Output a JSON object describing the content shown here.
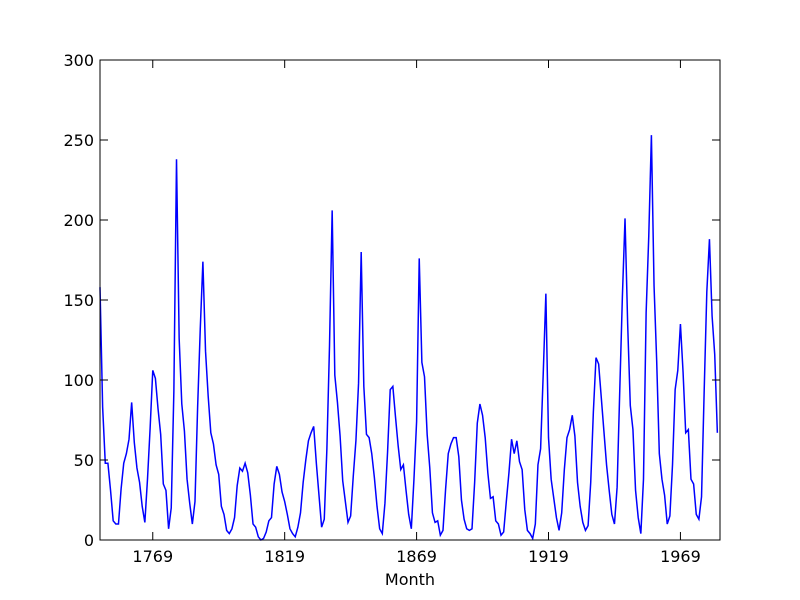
{
  "chart_data": {
    "type": "line",
    "xlabel": "Month",
    "x": [
      1749,
      1750,
      1751,
      1752,
      1753,
      1754,
      1755,
      1756,
      1757,
      1758,
      1759,
      1760,
      1761,
      1762,
      1763,
      1764,
      1765,
      1766,
      1767,
      1768,
      1769,
      1770,
      1771,
      1772,
      1773,
      1774,
      1775,
      1776,
      1777,
      1778,
      1779,
      1780,
      1781,
      1782,
      1783,
      1784,
      1785,
      1786,
      1787,
      1788,
      1789,
      1790,
      1791,
      1792,
      1793,
      1794,
      1795,
      1796,
      1797,
      1798,
      1799,
      1800,
      1801,
      1802,
      1803,
      1804,
      1805,
      1806,
      1807,
      1808,
      1809,
      1810,
      1811,
      1812,
      1813,
      1814,
      1815,
      1816,
      1817,
      1818,
      1819,
      1820,
      1821,
      1822,
      1823,
      1824,
      1825,
      1826,
      1827,
      1828,
      1829,
      1830,
      1831,
      1832,
      1833,
      1834,
      1835,
      1836,
      1837,
      1838,
      1839,
      1840,
      1841,
      1842,
      1843,
      1844,
      1845,
      1846,
      1847,
      1848,
      1849,
      1850,
      1851,
      1852,
      1853,
      1854,
      1855,
      1856,
      1857,
      1858,
      1859,
      1860,
      1861,
      1862,
      1863,
      1864,
      1865,
      1866,
      1867,
      1868,
      1869,
      1870,
      1871,
      1872,
      1873,
      1874,
      1875,
      1876,
      1877,
      1878,
      1879,
      1880,
      1881,
      1882,
      1883,
      1884,
      1885,
      1886,
      1887,
      1888,
      1889,
      1890,
      1891,
      1892,
      1893,
      1894,
      1895,
      1896,
      1897,
      1898,
      1899,
      1900,
      1901,
      1902,
      1903,
      1904,
      1905,
      1906,
      1907,
      1908,
      1909,
      1910,
      1911,
      1912,
      1913,
      1914,
      1915,
      1916,
      1917,
      1918,
      1919,
      1920,
      1921,
      1922,
      1923,
      1924,
      1925,
      1926,
      1927,
      1928,
      1929,
      1930,
      1931,
      1932,
      1933,
      1934,
      1935,
      1936,
      1937,
      1938,
      1939,
      1940,
      1941,
      1942,
      1943,
      1944,
      1945,
      1946,
      1947,
      1948,
      1949,
      1950,
      1951,
      1952,
      1953,
      1954,
      1955,
      1956,
      1957,
      1958,
      1959,
      1960,
      1961,
      1962,
      1963,
      1964,
      1965,
      1966,
      1967,
      1968,
      1969,
      1970,
      1971,
      1972,
      1973,
      1974,
      1975,
      1976,
      1977,
      1978,
      1979,
      1980,
      1981,
      1982,
      1983
    ],
    "series": [
      {
        "color": "#0000ff",
        "values": [
          158,
          83,
          48,
          48,
          31,
          12,
          10,
          10,
          32,
          48,
          54,
          63,
          86,
          61,
          45,
          36,
          21,
          11,
          38,
          70,
          106,
          101,
          82,
          66,
          35,
          31,
          7,
          20,
          93,
          238,
          126,
          85,
          68,
          38,
          23,
          10,
          24,
          83,
          132,
          174,
          118,
          90,
          67,
          60,
          47,
          41,
          21,
          16,
          6,
          4,
          7,
          14,
          34,
          45,
          43,
          48,
          42,
          28,
          10,
          8,
          2,
          0,
          1,
          5,
          12,
          14,
          35,
          46,
          41,
          30,
          24,
          16,
          7,
          4,
          2,
          8,
          17,
          36,
          50,
          62,
          67,
          71,
          48,
          28,
          8,
          13,
          57,
          122,
          206,
          103,
          86,
          65,
          37,
          24,
          11,
          15,
          40,
          62,
          98,
          180,
          96,
          66,
          64,
          54,
          39,
          21,
          7,
          4,
          23,
          55,
          94,
          96,
          77,
          59,
          44,
          47,
          31,
          16,
          7,
          38,
          74,
          176,
          111,
          102,
          66,
          45,
          17,
          11,
          12,
          3,
          6,
          32,
          54,
          60,
          64,
          64,
          52,
          25,
          13,
          7,
          6,
          7,
          36,
          73,
          85,
          78,
          64,
          42,
          26,
          27,
          12,
          10,
          3,
          5,
          24,
          42,
          63,
          54,
          62,
          49,
          44,
          19,
          6,
          4,
          1,
          10,
          47,
          57,
          104,
          154,
          64,
          38,
          26,
          14,
          6,
          17,
          44,
          64,
          69,
          78,
          65,
          36,
          21,
          11,
          6,
          9,
          36,
          80,
          114,
          110,
          89,
          68,
          47,
          31,
          16,
          10,
          33,
          93,
          152,
          201,
          135,
          84,
          69,
          31,
          14,
          4,
          38,
          142,
          190,
          253,
          159,
          112,
          54,
          38,
          28,
          10,
          15,
          47,
          94,
          106,
          135,
          105,
          67,
          69,
          38,
          35,
          16,
          13,
          27,
          93,
          155,
          188,
          140,
          116,
          67
        ]
      }
    ],
    "xlim": [
      1749,
      1984
    ],
    "ylim": [
      0,
      300
    ],
    "xticks": [
      1769,
      1819,
      1869,
      1919,
      1969
    ],
    "yticks": [
      0,
      50,
      100,
      150,
      200,
      250,
      300
    ]
  }
}
